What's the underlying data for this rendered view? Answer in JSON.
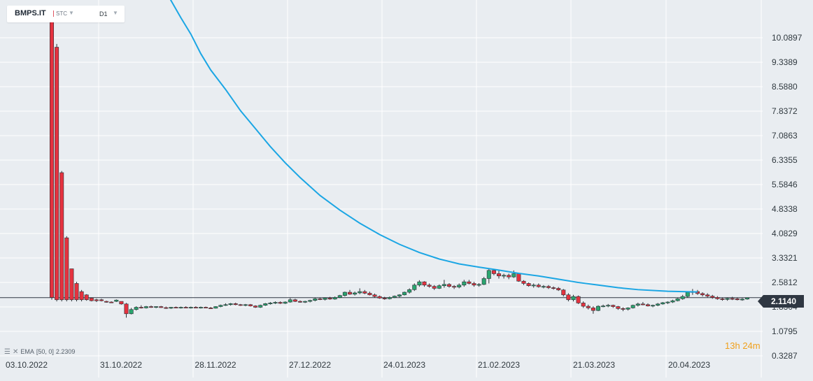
{
  "header": {
    "symbol": "BMPS.IT",
    "symbol_type": "STC",
    "timeframe": "D1"
  },
  "indicator": {
    "label": "EMA",
    "params": "[50, 0]",
    "value": "2.2309"
  },
  "countdown": {
    "hours": "13",
    "h": "h",
    "minutes": "24",
    "m": "m"
  },
  "colors": {
    "bull": "#2aa56f",
    "bear": "#e5323f",
    "ema": "#1ba6e4",
    "grid": "#ffffff",
    "background": "#e9edf1"
  },
  "chart_data": {
    "type": "candlestick",
    "y_ticks": [
      "10.0897",
      "9.3389",
      "8.5880",
      "7.8372",
      "7.0863",
      "6.3355",
      "5.5846",
      "4.8338",
      "4.0829",
      "3.3321",
      "2.5812",
      "1.8304",
      "1.0795",
      "0.3287"
    ],
    "x_ticks": [
      "03.10.2022",
      "31.10.2022",
      "28.11.2022",
      "27.12.2022",
      "24.01.2023",
      "21.02.2023",
      "21.03.2023",
      "20.04.2023"
    ],
    "ylim": [
      0.3287,
      10.0897
    ],
    "current_price": "2.1140",
    "grid": true,
    "candles": [
      [
        10.9,
        10.9,
        2.05,
        2.12
      ],
      [
        9.8,
        9.9,
        2.0,
        2.05
      ],
      [
        5.95,
        6.0,
        2.0,
        2.05
      ],
      [
        3.95,
        4.0,
        2.0,
        2.05
      ],
      [
        3.0,
        3.0,
        2.0,
        2.05
      ],
      [
        2.55,
        2.6,
        2.0,
        2.05
      ],
      [
        2.3,
        2.35,
        2.0,
        2.05
      ],
      [
        2.2,
        2.22,
        2.02,
        2.05
      ],
      [
        2.1,
        2.12,
        2.0,
        2.02
      ],
      [
        2.05,
        2.08,
        1.98,
        2.02
      ],
      [
        2.05,
        2.08,
        2.0,
        2.02
      ],
      [
        2.0,
        2.02,
        1.96,
        1.98
      ],
      [
        1.98,
        2.0,
        1.95,
        1.97
      ],
      [
        2.0,
        2.06,
        1.98,
        2.04
      ],
      [
        2.0,
        2.0,
        1.9,
        1.92
      ],
      [
        1.92,
        1.95,
        1.5,
        1.62
      ],
      [
        1.62,
        1.8,
        1.6,
        1.75
      ],
      [
        1.75,
        1.85,
        1.72,
        1.82
      ],
      [
        1.82,
        1.88,
        1.78,
        1.8
      ],
      [
        1.8,
        1.86,
        1.78,
        1.84
      ],
      [
        1.84,
        1.87,
        1.8,
        1.82
      ],
      [
        1.82,
        1.85,
        1.79,
        1.84
      ],
      [
        1.84,
        1.86,
        1.8,
        1.81
      ],
      [
        1.81,
        1.84,
        1.77,
        1.79
      ],
      [
        1.79,
        1.83,
        1.77,
        1.82
      ],
      [
        1.82,
        1.84,
        1.79,
        1.8
      ],
      [
        1.8,
        1.84,
        1.78,
        1.82
      ],
      [
        1.82,
        1.85,
        1.79,
        1.81
      ],
      [
        1.81,
        1.84,
        1.78,
        1.82
      ],
      [
        1.82,
        1.85,
        1.79,
        1.81
      ],
      [
        1.81,
        1.84,
        1.78,
        1.82
      ],
      [
        1.82,
        1.84,
        1.79,
        1.8
      ],
      [
        1.8,
        1.83,
        1.77,
        1.79
      ],
      [
        1.79,
        1.85,
        1.78,
        1.84
      ],
      [
        1.84,
        1.9,
        1.82,
        1.88
      ],
      [
        1.88,
        1.94,
        1.86,
        1.9
      ],
      [
        1.9,
        1.95,
        1.87,
        1.93
      ],
      [
        1.93,
        1.96,
        1.88,
        1.9
      ],
      [
        1.9,
        1.92,
        1.86,
        1.88
      ],
      [
        1.88,
        1.92,
        1.85,
        1.9
      ],
      [
        1.9,
        1.92,
        1.84,
        1.86
      ],
      [
        1.86,
        1.88,
        1.8,
        1.82
      ],
      [
        1.82,
        1.9,
        1.8,
        1.88
      ],
      [
        1.88,
        1.95,
        1.86,
        1.93
      ],
      [
        1.93,
        1.98,
        1.9,
        1.95
      ],
      [
        1.95,
        2.0,
        1.92,
        1.97
      ],
      [
        1.97,
        2.0,
        1.92,
        1.94
      ],
      [
        1.94,
        2.0,
        1.92,
        1.98
      ],
      [
        1.98,
        2.1,
        1.96,
        2.05
      ],
      [
        2.05,
        2.08,
        1.98,
        2.0
      ],
      [
        2.0,
        2.03,
        1.96,
        1.98
      ],
      [
        1.98,
        2.02,
        1.95,
        2.0
      ],
      [
        2.0,
        2.05,
        1.97,
        2.03
      ],
      [
        2.03,
        2.12,
        2.0,
        2.08
      ],
      [
        2.08,
        2.12,
        2.04,
        2.06
      ],
      [
        2.06,
        2.12,
        2.03,
        2.1
      ],
      [
        2.1,
        2.14,
        2.05,
        2.07
      ],
      [
        2.07,
        2.15,
        2.05,
        2.12
      ],
      [
        2.12,
        2.2,
        2.1,
        2.18
      ],
      [
        2.18,
        2.3,
        2.15,
        2.28
      ],
      [
        2.28,
        2.35,
        2.2,
        2.22
      ],
      [
        2.22,
        2.3,
        2.18,
        2.26
      ],
      [
        2.26,
        2.4,
        2.22,
        2.3
      ],
      [
        2.3,
        2.35,
        2.22,
        2.25
      ],
      [
        2.25,
        2.3,
        2.18,
        2.2
      ],
      [
        2.2,
        2.24,
        2.12,
        2.15
      ],
      [
        2.15,
        2.18,
        2.08,
        2.1
      ],
      [
        2.1,
        2.14,
        2.05,
        2.08
      ],
      [
        2.08,
        2.15,
        2.06,
        2.12
      ],
      [
        2.12,
        2.18,
        2.1,
        2.16
      ],
      [
        2.16,
        2.22,
        2.12,
        2.2
      ],
      [
        2.2,
        2.3,
        2.18,
        2.28
      ],
      [
        2.28,
        2.4,
        2.24,
        2.36
      ],
      [
        2.36,
        2.55,
        2.32,
        2.5
      ],
      [
        2.5,
        2.65,
        2.45,
        2.6
      ],
      [
        2.6,
        2.62,
        2.45,
        2.5
      ],
      [
        2.5,
        2.55,
        2.42,
        2.46
      ],
      [
        2.46,
        2.5,
        2.35,
        2.4
      ],
      [
        2.4,
        2.52,
        2.38,
        2.48
      ],
      [
        2.48,
        2.66,
        2.42,
        2.52
      ],
      [
        2.52,
        2.56,
        2.42,
        2.46
      ],
      [
        2.46,
        2.5,
        2.38,
        2.44
      ],
      [
        2.44,
        2.55,
        2.4,
        2.5
      ],
      [
        2.5,
        2.66,
        2.45,
        2.6
      ],
      [
        2.6,
        2.66,
        2.52,
        2.55
      ],
      [
        2.55,
        2.6,
        2.45,
        2.5
      ],
      [
        2.5,
        2.56,
        2.45,
        2.52
      ],
      [
        2.52,
        2.75,
        2.5,
        2.7
      ],
      [
        2.7,
        3.0,
        2.55,
        2.95
      ],
      [
        2.95,
        3.0,
        2.8,
        2.85
      ],
      [
        2.85,
        2.95,
        2.7,
        2.78
      ],
      [
        2.78,
        2.85,
        2.7,
        2.8
      ],
      [
        2.8,
        2.85,
        2.68,
        2.75
      ],
      [
        2.75,
        2.95,
        2.72,
        2.85
      ],
      [
        2.85,
        2.88,
        2.6,
        2.62
      ],
      [
        2.62,
        2.65,
        2.5,
        2.55
      ],
      [
        2.55,
        2.58,
        2.45,
        2.48
      ],
      [
        2.48,
        2.55,
        2.42,
        2.5
      ],
      [
        2.5,
        2.55,
        2.42,
        2.45
      ],
      [
        2.45,
        2.5,
        2.4,
        2.46
      ],
      [
        2.46,
        2.5,
        2.38,
        2.42
      ],
      [
        2.42,
        2.46,
        2.36,
        2.4
      ],
      [
        2.4,
        2.44,
        2.32,
        2.35
      ],
      [
        2.35,
        2.38,
        2.15,
        2.2
      ],
      [
        2.2,
        2.25,
        2.0,
        2.05
      ],
      [
        2.05,
        2.2,
        2.0,
        2.15
      ],
      [
        2.15,
        2.18,
        1.92,
        1.95
      ],
      [
        1.95,
        2.0,
        1.8,
        1.85
      ],
      [
        1.85,
        1.9,
        1.75,
        1.8
      ],
      [
        1.8,
        1.85,
        1.62,
        1.72
      ],
      [
        1.72,
        1.88,
        1.7,
        1.85
      ],
      [
        1.85,
        1.9,
        1.82,
        1.86
      ],
      [
        1.86,
        1.92,
        1.82,
        1.88
      ],
      [
        1.88,
        1.9,
        1.8,
        1.84
      ],
      [
        1.84,
        1.86,
        1.74,
        1.78
      ],
      [
        1.78,
        1.82,
        1.7,
        1.76
      ],
      [
        1.76,
        1.82,
        1.72,
        1.8
      ],
      [
        1.8,
        1.9,
        1.78,
        1.88
      ],
      [
        1.88,
        1.96,
        1.84,
        1.92
      ],
      [
        1.92,
        1.98,
        1.88,
        1.9
      ],
      [
        1.9,
        1.94,
        1.84,
        1.86
      ],
      [
        1.86,
        1.9,
        1.82,
        1.88
      ],
      [
        1.88,
        1.95,
        1.85,
        1.92
      ],
      [
        1.92,
        1.98,
        1.9,
        1.96
      ],
      [
        1.96,
        2.0,
        1.92,
        1.98
      ],
      [
        1.98,
        2.05,
        1.95,
        2.02
      ],
      [
        2.02,
        2.1,
        2.0,
        2.08
      ],
      [
        2.08,
        2.2,
        2.05,
        2.15
      ],
      [
        2.15,
        2.3,
        2.12,
        2.28
      ],
      [
        2.28,
        2.38,
        2.2,
        2.3
      ],
      [
        2.3,
        2.35,
        2.2,
        2.24
      ],
      [
        2.24,
        2.28,
        2.15,
        2.2
      ],
      [
        2.2,
        2.25,
        2.12,
        2.16
      ],
      [
        2.16,
        2.2,
        2.08,
        2.12
      ],
      [
        2.12,
        2.16,
        2.05,
        2.08
      ],
      [
        2.08,
        2.12,
        2.02,
        2.06
      ],
      [
        2.06,
        2.12,
        2.02,
        2.09
      ],
      [
        2.09,
        2.14,
        2.04,
        2.08
      ],
      [
        2.08,
        2.12,
        2.03,
        2.05
      ],
      [
        2.05,
        2.1,
        2.02,
        2.07
      ],
      [
        2.07,
        2.12,
        2.05,
        2.11
      ]
    ],
    "ema_points": [
      [
        23,
        11.5
      ],
      [
        26,
        10.7
      ],
      [
        28,
        10.2
      ],
      [
        30,
        9.6
      ],
      [
        32,
        9.1
      ],
      [
        35,
        8.5
      ],
      [
        38,
        7.85
      ],
      [
        41,
        7.3
      ],
      [
        44,
        6.75
      ],
      [
        47,
        6.25
      ],
      [
        50,
        5.8
      ],
      [
        54,
        5.25
      ],
      [
        58,
        4.8
      ],
      [
        62,
        4.4
      ],
      [
        66,
        4.05
      ],
      [
        70,
        3.75
      ],
      [
        74,
        3.5
      ],
      [
        78,
        3.3
      ],
      [
        82,
        3.15
      ],
      [
        86,
        3.05
      ],
      [
        90,
        2.96
      ],
      [
        94,
        2.86
      ],
      [
        98,
        2.78
      ],
      [
        102,
        2.68
      ],
      [
        106,
        2.58
      ],
      [
        110,
        2.5
      ],
      [
        114,
        2.42
      ],
      [
        118,
        2.36
      ],
      [
        124,
        2.31
      ],
      [
        130,
        2.29
      ]
    ]
  }
}
